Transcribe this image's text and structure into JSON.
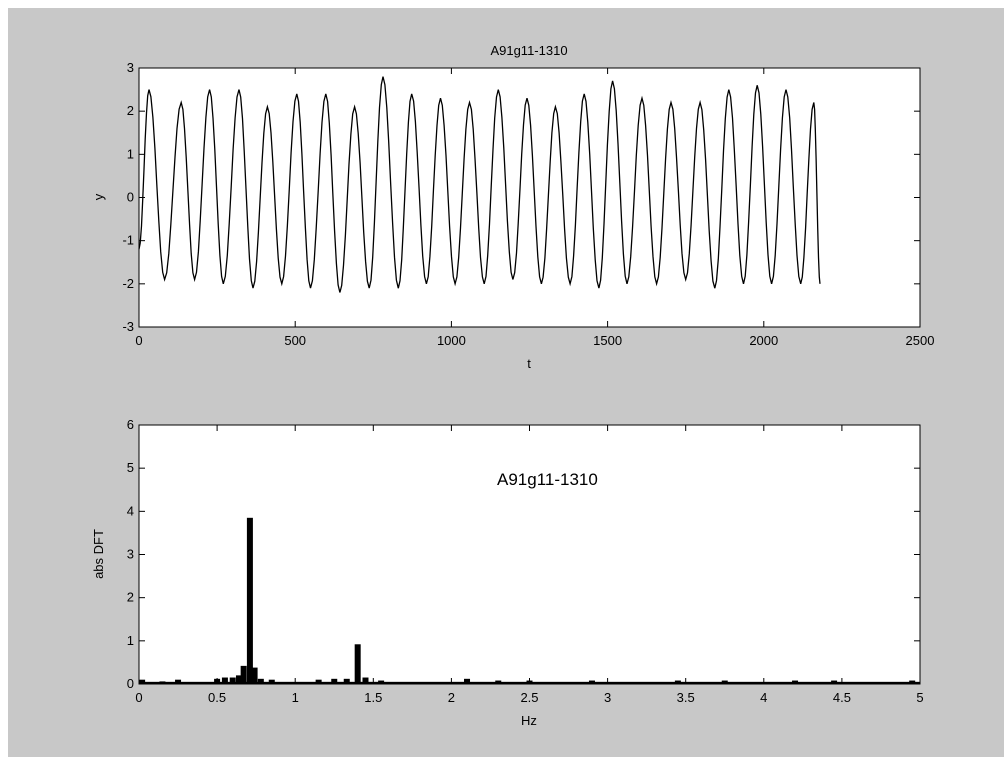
{
  "colors": {
    "figure_bg": "#c8c8c8",
    "axes_bg": "#ffffff",
    "line": "#000000"
  },
  "chart_data": [
    {
      "type": "line",
      "title": "A91g11-1310",
      "xlabel": "t",
      "ylabel": "y",
      "xlim": [
        0,
        2500
      ],
      "ylim": [
        -3,
        3
      ],
      "xticks": [
        "0",
        "500",
        "1000",
        "1500",
        "2000",
        "2500"
      ],
      "yticks": [
        "-3",
        "-2",
        "-1",
        "0",
        "1",
        "2",
        "3"
      ],
      "series": [
        {
          "peaks": [
            [
              32,
              2.5
            ],
            [
              135,
              2.2
            ],
            [
              226,
              2.5
            ],
            [
              320,
              2.5
            ],
            [
              411,
              2.1
            ],
            [
              505,
              2.4
            ],
            [
              598,
              2.4
            ],
            [
              690,
              2.1
            ],
            [
              781,
              2.8
            ],
            [
              873,
              2.4
            ],
            [
              965,
              2.3
            ],
            [
              1058,
              2.2
            ],
            [
              1150,
              2.5
            ],
            [
              1242,
              2.3
            ],
            [
              1333,
              2.1
            ],
            [
              1425,
              2.4
            ],
            [
              1516,
              2.7
            ],
            [
              1610,
              2.3
            ],
            [
              1703,
              2.2
            ],
            [
              1796,
              2.2
            ],
            [
              1888,
              2.5
            ],
            [
              1979,
              2.6
            ],
            [
              2071,
              2.5
            ],
            [
              2160,
              2.2
            ]
          ],
          "troughs": [
            [
              0,
              -1.2
            ],
            [
              82,
              -1.9
            ],
            [
              178,
              -1.9
            ],
            [
              270,
              -2.0
            ],
            [
              365,
              -2.1
            ],
            [
              457,
              -2.0
            ],
            [
              549,
              -2.1
            ],
            [
              643,
              -2.2
            ],
            [
              737,
              -2.1
            ],
            [
              830,
              -2.1
            ],
            [
              920,
              -2.0
            ],
            [
              1012,
              -2.0
            ],
            [
              1105,
              -2.0
            ],
            [
              1197,
              -1.9
            ],
            [
              1288,
              -2.0
            ],
            [
              1380,
              -2.0
            ],
            [
              1472,
              -2.1
            ],
            [
              1562,
              -2.0
            ],
            [
              1657,
              -2.0
            ],
            [
              1750,
              -1.9
            ],
            [
              1843,
              -2.1
            ],
            [
              1935,
              -2.0
            ],
            [
              2025,
              -2.0
            ],
            [
              2118,
              -2.0
            ],
            [
              2180,
              -2.0
            ]
          ]
        }
      ]
    },
    {
      "type": "bar",
      "xlabel": "Hz",
      "ylabel": "abs DFT",
      "annotation": "A91g11-1310",
      "xlim": [
        0,
        5
      ],
      "ylim": [
        0,
        6
      ],
      "xticks": [
        "0",
        "0.5",
        "1",
        "1.5",
        "2",
        "2.5",
        "3",
        "3.5",
        "4",
        "4.5",
        "5"
      ],
      "yticks": [
        "0",
        "1",
        "2",
        "3",
        "4",
        "5",
        "6"
      ],
      "bars": [
        {
          "x": 0.02,
          "y": 0.1
        },
        {
          "x": 0.15,
          "y": 0.06
        },
        {
          "x": 0.25,
          "y": 0.1
        },
        {
          "x": 0.5,
          "y": 0.12
        },
        {
          "x": 0.55,
          "y": 0.15
        },
        {
          "x": 0.6,
          "y": 0.15
        },
        {
          "x": 0.64,
          "y": 0.2
        },
        {
          "x": 0.67,
          "y": 0.42
        },
        {
          "x": 0.71,
          "y": 3.85
        },
        {
          "x": 0.74,
          "y": 0.38
        },
        {
          "x": 0.78,
          "y": 0.12
        },
        {
          "x": 0.85,
          "y": 0.1
        },
        {
          "x": 1.15,
          "y": 0.1
        },
        {
          "x": 1.25,
          "y": 0.12
        },
        {
          "x": 1.33,
          "y": 0.12
        },
        {
          "x": 1.4,
          "y": 0.92
        },
        {
          "x": 1.45,
          "y": 0.15
        },
        {
          "x": 1.55,
          "y": 0.08
        },
        {
          "x": 2.1,
          "y": 0.12
        },
        {
          "x": 2.3,
          "y": 0.08
        },
        {
          "x": 2.5,
          "y": 0.08
        },
        {
          "x": 2.9,
          "y": 0.08
        },
        {
          "x": 3.45,
          "y": 0.08
        },
        {
          "x": 3.75,
          "y": 0.08
        },
        {
          "x": 4.2,
          "y": 0.08
        },
        {
          "x": 4.45,
          "y": 0.08
        },
        {
          "x": 4.95,
          "y": 0.08
        }
      ],
      "baseline_noise": 0.05
    }
  ]
}
